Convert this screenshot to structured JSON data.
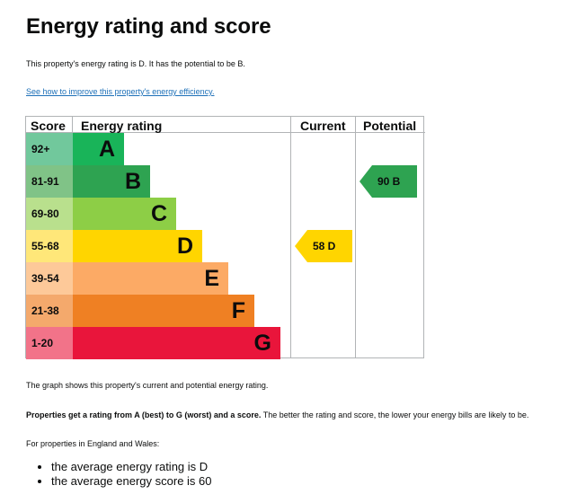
{
  "page": {
    "title": "Energy rating and score",
    "intro": "This property's energy rating is D. It has the potential to be B.",
    "link": "See how to improve this property's energy efficiency."
  },
  "chart": {
    "headers": {
      "score": "Score",
      "rating": "Energy rating",
      "current": "Current",
      "potential": "Potential"
    },
    "bands": [
      {
        "score": "92+",
        "letter": "A",
        "color": "#19b459",
        "score_bg": "#71c89c"
      },
      {
        "score": "81-91",
        "letter": "B",
        "color": "#2ea351",
        "score_bg": "#80c387"
      },
      {
        "score": "69-80",
        "letter": "C",
        "color": "#8dce46",
        "score_bg": "#b9e08d"
      },
      {
        "score": "55-68",
        "letter": "D",
        "color": "#ffd500",
        "score_bg": "#ffe779"
      },
      {
        "score": "39-54",
        "letter": "E",
        "color": "#fcaa65",
        "score_bg": "#fdc999"
      },
      {
        "score": "21-38",
        "letter": "F",
        "color": "#ef8023",
        "score_bg": "#f4a96c"
      },
      {
        "score": "1-20",
        "letter": "G",
        "color": "#e9153b",
        "score_bg": "#f27389"
      }
    ],
    "current": {
      "label": "58  D",
      "value": 58,
      "band": "D",
      "color": "#ffd500"
    },
    "potential": {
      "label": "90  B",
      "value": 90,
      "band": "B",
      "color": "#2ea351"
    }
  },
  "chart_data": {
    "type": "bar",
    "categories": [
      "92+",
      "81-91",
      "69-80",
      "55-68",
      "39-54",
      "21-38",
      "1-20"
    ],
    "series": [
      {
        "values": [
          "A",
          "B",
          "C",
          "D",
          "E",
          "F",
          "G"
        ]
      }
    ],
    "current": {
      "score": 58,
      "rating": "D"
    },
    "potential": {
      "score": 90,
      "rating": "B"
    }
  },
  "footer": {
    "graph_note": "The graph shows this property's current and potential energy rating.",
    "bold_note": "Properties get a rating from A (best) to G (worst) and a score.",
    "note_rest": " The better the rating and score, the lower your energy bills are likely to be.",
    "region": "For properties in England and Wales:",
    "bullets": [
      "the average energy rating is D",
      "the average energy score is 60"
    ]
  }
}
